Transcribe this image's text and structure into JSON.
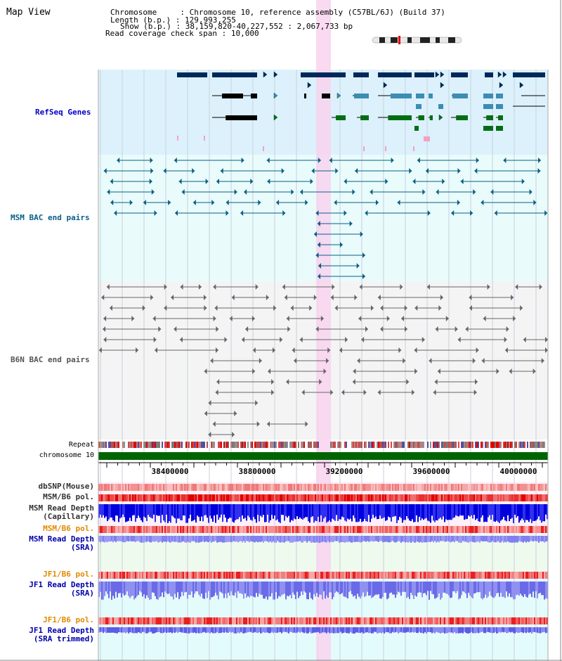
{
  "window": {
    "title": "Map View"
  },
  "header": {
    "chromosome_label": "Chromosome",
    "chromosome_value": "Chromosome 10, reference assembly (C57BL/6J) (Build 37)",
    "length_label": "Length (b.p.)",
    "length_value": "129,993,255",
    "show_label": "Show (b.p.)",
    "show_value": "38,159,820-40,227,552 : 2,067,733 bp",
    "coverage_label": "Read coverage check span",
    "coverage_value": "10,000"
  },
  "tracks": {
    "refseq": {
      "label": "RefSeq Genes",
      "color": "#0000cc"
    },
    "msm_bac": {
      "label": "MSM BAC end pairs",
      "color": "#0a5f86"
    },
    "b6n_bac": {
      "label": "B6N BAC end pairs",
      "color": "#555555"
    }
  },
  "ruler": {
    "repeat_label": "Repeat",
    "chromosome_label": "chromosome 10",
    "ticks": [
      "38400000",
      "38800000",
      "39200000",
      "39600000",
      "40000000"
    ]
  },
  "lower_tracks": [
    {
      "line1": "dbSNP(Mouse)",
      "line2": "",
      "color": "#333333"
    },
    {
      "line1": "MSM/B6 pol.",
      "line2": "",
      "color": "#333333"
    },
    {
      "line1": "MSM Read Depth",
      "line2": "(Capillary)",
      "color": "#333333"
    },
    {
      "line1": "MSM/B6 pol.",
      "line2": "",
      "color": "#e08a00"
    },
    {
      "line1": "MSM Read Depth",
      "line2": "(SRA)",
      "color": "#0000aa"
    },
    {
      "line1": "JF1/B6 pol.",
      "line2": "",
      "color": "#e08a00"
    },
    {
      "line1": "JF1 Read Depth",
      "line2": "(SRA)",
      "color": "#0000aa"
    },
    {
      "line1": "JF1/B6 pol.",
      "line2": "",
      "color": "#e08a00"
    },
    {
      "line1": "JF1 Read Depth",
      "line2": "(SRA trimmed)",
      "color": "#0000aa"
    }
  ],
  "colors": {
    "refseq_bg": "#dcf1fb",
    "msm_bg": "#e9fbfb",
    "b6n_bg": "#f4f4f4",
    "highlight": "#f8d4ee",
    "gene_dark": "#00285a",
    "gene_mid": "#3c8cb4",
    "gene_green": "#006e14",
    "chrom_bar": "#006400"
  }
}
